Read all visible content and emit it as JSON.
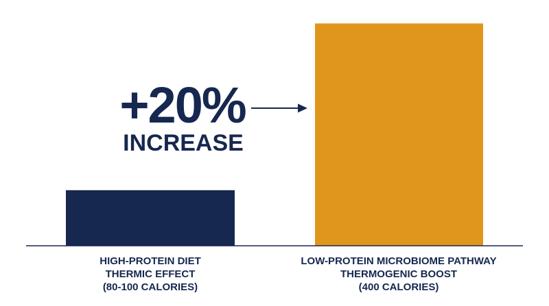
{
  "chart_data": {
    "type": "bar",
    "categories": [
      "HIGH-PROTEIN DIET THERMIC EFFECT (80-100 CALORIES)",
      "LOW-PROTEIN MICROBIOME PATHWAY THERMOGENIC BOOST (400 CALORIES)"
    ],
    "category_label_lines": [
      [
        "HIGH-PROTEIN DIET",
        "THERMIC EFFECT",
        "(80-100 CALORIES)"
      ],
      [
        "LOW-PROTEIN MICROBIOME PATHWAY",
        "THERMOGENIC BOOST",
        "(400 CALORIES)"
      ]
    ],
    "values": [
      100,
      400
    ],
    "ylim": [
      0,
      420
    ],
    "colors": [
      "#16284f",
      "#e0961c"
    ],
    "axis_color": "#16284f",
    "title": "",
    "xlabel": "",
    "ylabel": "",
    "grid": false,
    "annotation": {
      "big_text": "+20%",
      "small_text": "INCREASE",
      "arrow": "right",
      "color": "#16284f"
    }
  }
}
